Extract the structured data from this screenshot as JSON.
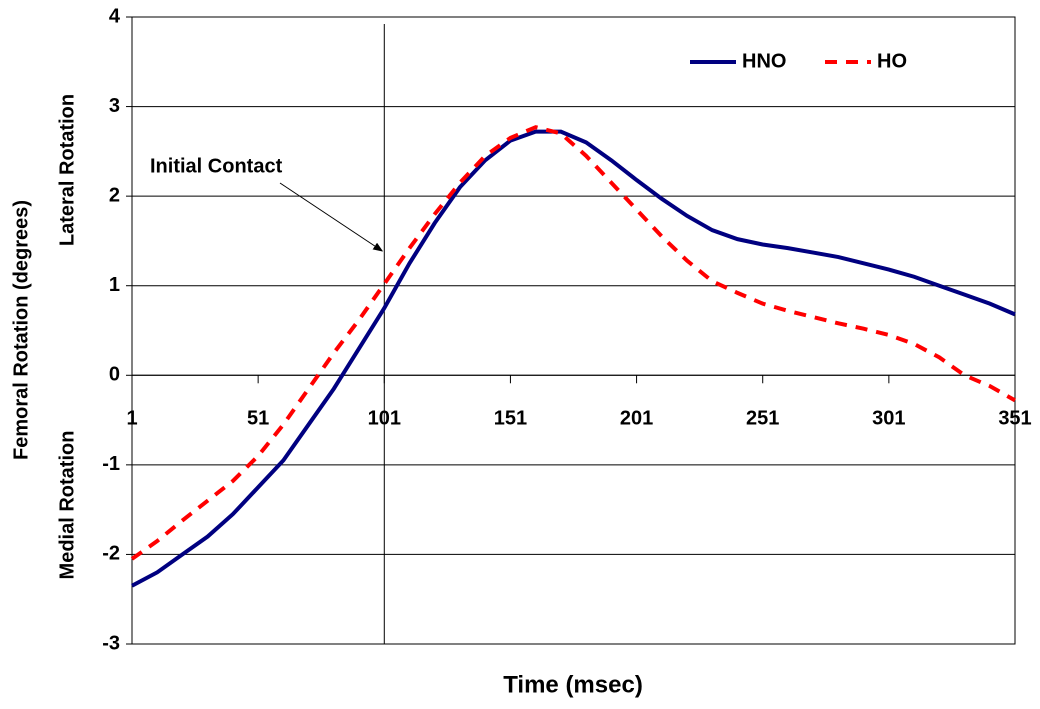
{
  "chart_data": {
    "type": "line",
    "xlabel": "Time (msec)",
    "ylabel": "Femoral Rotation (degrees)",
    "ylabel_upper": "Lateral Rotation",
    "ylabel_lower": "Medial Rotation",
    "x": [
      1,
      11,
      21,
      31,
      41,
      51,
      61,
      71,
      81,
      91,
      101,
      111,
      121,
      131,
      141,
      151,
      161,
      171,
      181,
      191,
      201,
      211,
      221,
      231,
      241,
      251,
      261,
      271,
      281,
      291,
      301,
      311,
      321,
      331,
      341,
      351
    ],
    "series": [
      {
        "name": "HNO",
        "color": "#000080",
        "dash": false,
        "values": [
          -2.35,
          -2.2,
          -2.0,
          -1.8,
          -1.55,
          -1.25,
          -0.95,
          -0.55,
          -0.15,
          0.3,
          0.75,
          1.25,
          1.7,
          2.1,
          2.4,
          2.62,
          2.72,
          2.72,
          2.6,
          2.4,
          2.18,
          1.97,
          1.78,
          1.62,
          1.52,
          1.46,
          1.42,
          1.37,
          1.32,
          1.25,
          1.18,
          1.1,
          1.0,
          0.9,
          0.8,
          0.68
        ]
      },
      {
        "name": "HO",
        "color": "#ff0000",
        "dash": true,
        "values": [
          -2.05,
          -1.85,
          -1.62,
          -1.4,
          -1.18,
          -0.9,
          -0.55,
          -0.15,
          0.25,
          0.62,
          1.02,
          1.42,
          1.8,
          2.15,
          2.45,
          2.65,
          2.77,
          2.7,
          2.45,
          2.15,
          1.85,
          1.55,
          1.28,
          1.05,
          0.92,
          0.8,
          0.72,
          0.65,
          0.58,
          0.52,
          0.45,
          0.35,
          0.2,
          0.0,
          -0.12,
          -0.28
        ]
      }
    ],
    "xlim": [
      1,
      351
    ],
    "xticks": [
      1,
      51,
      101,
      151,
      201,
      251,
      301,
      351
    ],
    "ylim": [
      -3,
      4
    ],
    "yticks": [
      -3,
      -2,
      -1,
      0,
      1,
      2,
      3,
      4
    ],
    "grid": true,
    "legend": "upper right",
    "annotation": {
      "text": "Initial Contact",
      "x": 101
    }
  }
}
